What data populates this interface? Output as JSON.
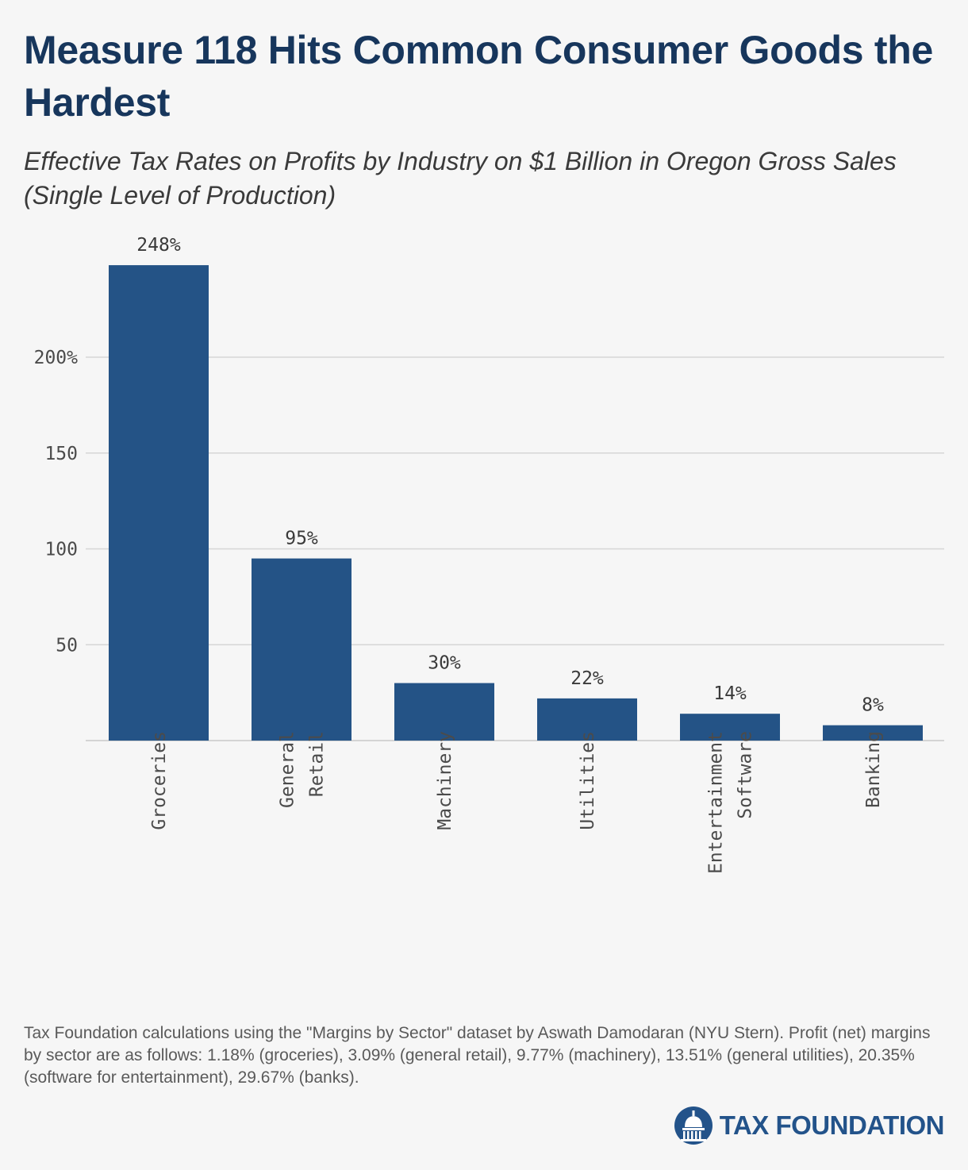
{
  "title": "Measure 118 Hits Common Consumer Goods the Hardest",
  "subtitle": "Effective Tax Rates on Profits by Industry on $1 Billion in Oregon Gross Sales (Single Level of Production)",
  "source_note": "Tax Foundation calculations using the \"Margins by Sector\" dataset by Aswath Damodaran (NYU Stern). Profit (net) margins by sector are as follows: 1.18% (groceries), 3.09% (general retail), 9.77% (machinery), 13.51% (general utilities), 20.35% (software for entertainment), 29.67% (banks).",
  "logo": {
    "text": "TAX FOUNDATION",
    "icon": "capitol-dome-icon"
  },
  "colors": {
    "bar": "#245386",
    "title": "#17365c",
    "grid": "#d6d6d6",
    "background": "#f6f6f6"
  },
  "chart_data": {
    "type": "bar",
    "title": "Measure 118 Hits Common Consumer Goods the Hardest",
    "subtitle": "Effective Tax Rates on Profits by Industry on $1 Billion in Oregon Gross Sales (Single Level of Production)",
    "categories": [
      [
        "Groceries"
      ],
      [
        "General",
        "Retail"
      ],
      [
        "Machinery"
      ],
      [
        "Utilities"
      ],
      [
        "Entertainment",
        "Software"
      ],
      [
        "Banking"
      ]
    ],
    "values": [
      248,
      95,
      30,
      22,
      14,
      8
    ],
    "data_labels": [
      "248%",
      "95%",
      "30%",
      "22%",
      "14%",
      "8%"
    ],
    "yticks": [
      {
        "value": 50,
        "label": "50"
      },
      {
        "value": 100,
        "label": "100"
      },
      {
        "value": 150,
        "label": "150"
      },
      {
        "value": 200,
        "label": "200%"
      }
    ],
    "ylim": [
      0,
      248
    ],
    "grid": true,
    "xlabel": "",
    "ylabel": ""
  }
}
